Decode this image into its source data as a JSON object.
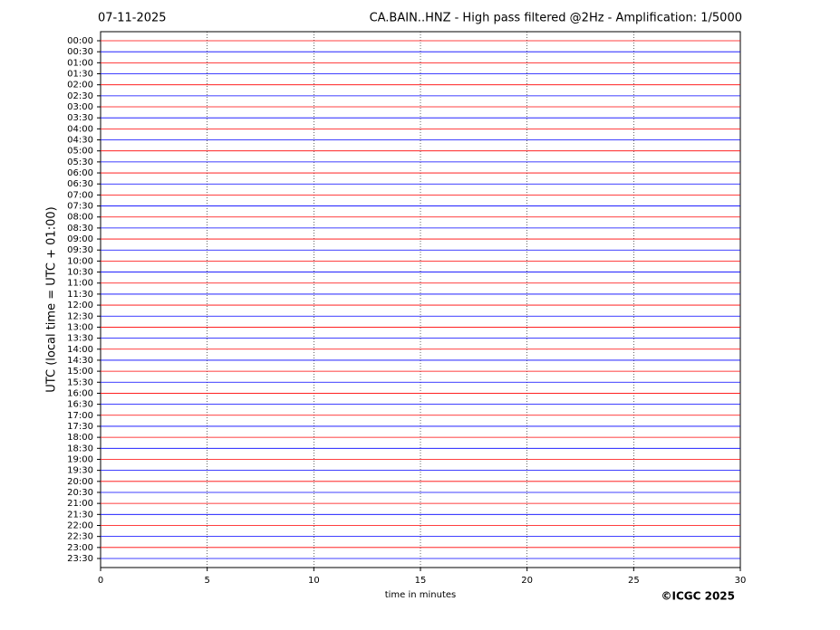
{
  "chart_data": {
    "type": "helicorder",
    "date": "07-11-2025",
    "title": "CA.BAIN..HNZ - High pass filtered @2Hz - Amplification: 1/5000",
    "y_label": "UTC (local time = UTC + 01:00)",
    "x_label": "time in minutes",
    "copyright": "©ICGC 2025",
    "categories": [
      "00:00",
      "00:30",
      "01:00",
      "01:30",
      "02:00",
      "02:30",
      "03:00",
      "03:30",
      "04:00",
      "04:30",
      "05:00",
      "05:30",
      "06:00",
      "06:30",
      "07:00",
      "07:30",
      "08:00",
      "08:30",
      "09:00",
      "09:30",
      "10:00",
      "10:30",
      "11:00",
      "11:30",
      "12:00",
      "12:30",
      "13:00",
      "13:30",
      "14:00",
      "14:30",
      "15:00",
      "15:30",
      "16:00",
      "16:30",
      "17:00",
      "17:30",
      "18:00",
      "18:30",
      "19:00",
      "19:30",
      "20:00",
      "20:30",
      "21:00",
      "21:30",
      "22:00",
      "22:30",
      "23:00",
      "23:30"
    ],
    "trace_colors": [
      "#ff0000",
      "#0000ff"
    ],
    "xlim": [
      0,
      30
    ],
    "xticks": [
      0,
      5,
      10,
      15,
      20,
      25,
      30
    ],
    "grid": true
  }
}
